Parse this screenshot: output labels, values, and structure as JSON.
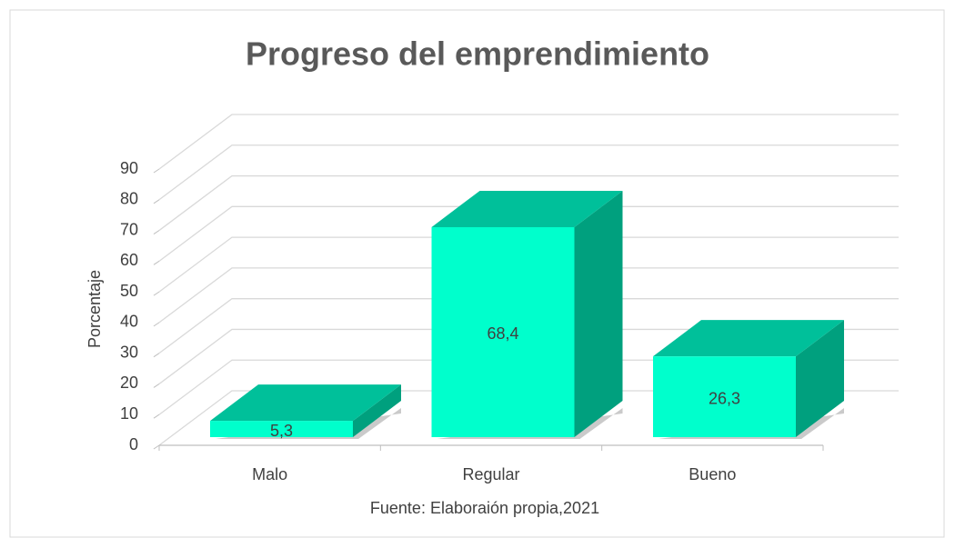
{
  "chart_data": {
    "type": "bar3d",
    "title": "Progreso del emprendimiento",
    "y_label": "Porcentaje",
    "source": "Fuente: Elaboraión propia,2021",
    "categories": [
      "Malo",
      "Regular",
      "Bueno"
    ],
    "values": [
      5.3,
      68.4,
      26.3
    ],
    "value_labels": [
      "5,3",
      "68,4",
      "26,3"
    ],
    "color": "#00ffcc",
    "ylim": [
      0,
      90
    ],
    "yticks": [
      0,
      10,
      20,
      30,
      40,
      50,
      60,
      70,
      80,
      90
    ],
    "grid": true
  }
}
